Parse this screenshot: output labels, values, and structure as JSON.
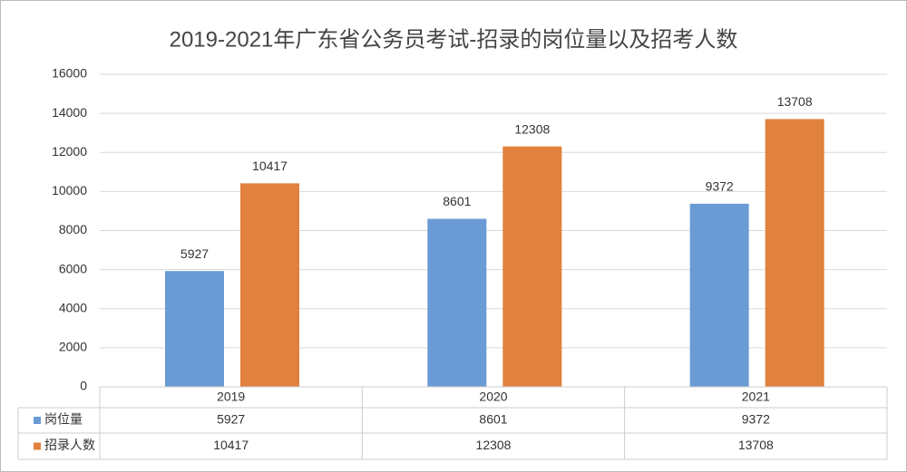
{
  "chart_data": {
    "type": "bar",
    "title": "2019-2021年广东省公务员考试-招录的岗位量以及招考人数",
    "categories": [
      "2019",
      "2020",
      "2021"
    ],
    "series": [
      {
        "name": "岗位量",
        "color": "#6a9bd4",
        "values": [
          5927,
          8601,
          9372
        ]
      },
      {
        "name": "招录人数",
        "color": "#e0813e",
        "values": [
          10417,
          12308,
          13708
        ]
      }
    ],
    "ylim": [
      0,
      16000
    ],
    "yticks": [
      0,
      2000,
      4000,
      6000,
      8000,
      10000,
      12000,
      14000,
      16000
    ],
    "grid": true,
    "data_table": true
  }
}
